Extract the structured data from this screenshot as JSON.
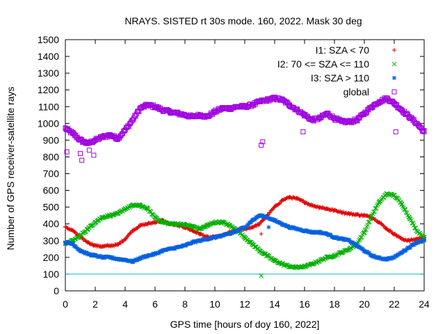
{
  "chart_data": {
    "type": "scatter",
    "title": "NRAYS. SISTED rt 30s mode. 160, 2022. Mask 30 deg",
    "xlabel": "GPS time [hours of doy 160, 2022]",
    "ylabel": "Number of GPS receiver-satellite rays",
    "xlim": [
      0,
      24
    ],
    "ylim": [
      0,
      1500
    ],
    "xticks": [
      0,
      2,
      4,
      6,
      8,
      10,
      12,
      14,
      16,
      18,
      20,
      22,
      24
    ],
    "yticks": [
      0,
      100,
      200,
      300,
      400,
      500,
      600,
      700,
      800,
      900,
      1000,
      1100,
      1200,
      1300,
      1400,
      1500
    ],
    "legend_position": "top-right",
    "reference_line": {
      "y": 100,
      "color": "#00c0c0"
    },
    "series": [
      {
        "name": "I1: SZA < 70",
        "marker": "+",
        "color": "#e00000",
        "x": [
          0,
          0.5,
          1,
          1.5,
          2,
          2.5,
          3,
          3.5,
          4,
          4.5,
          5,
          5.5,
          6,
          6.5,
          7,
          7.5,
          8,
          8.5,
          9,
          9.5,
          10,
          10.5,
          11,
          11.5,
          12,
          12.5,
          13,
          13.5,
          14,
          14.5,
          15,
          15.5,
          16,
          16.5,
          17,
          17.5,
          18,
          18.5,
          19,
          19.5,
          20,
          20.5,
          21,
          21.5,
          22,
          22.5,
          23,
          23.5,
          24
        ],
        "values": [
          380,
          360,
          320,
          290,
          270,
          265,
          270,
          275,
          310,
          360,
          390,
          400,
          410,
          420,
          400,
          390,
          380,
          360,
          340,
          320,
          320,
          330,
          350,
          360,
          370,
          380,
          400,
          450,
          500,
          540,
          560,
          550,
          530,
          510,
          500,
          490,
          480,
          470,
          460,
          455,
          450,
          440,
          410,
          370,
          340,
          310,
          300,
          310,
          320
        ]
      },
      {
        "name": "I2: 70 <= SZA <= 110",
        "marker": "x",
        "color": "#00b000",
        "x": [
          0,
          0.5,
          1,
          1.5,
          2,
          2.5,
          3,
          3.5,
          4,
          4.5,
          5,
          5.5,
          6,
          6.5,
          7,
          7.5,
          8,
          8.5,
          9,
          9.5,
          10,
          10.5,
          11,
          11.5,
          12,
          12.5,
          13,
          13.5,
          14,
          14.5,
          15,
          15.5,
          16,
          16.5,
          17,
          17.5,
          18,
          18.5,
          19,
          19.5,
          20,
          20.5,
          21,
          21.5,
          22,
          22.5,
          23,
          23.5,
          24
        ],
        "values": [
          280,
          300,
          330,
          370,
          410,
          440,
          450,
          460,
          490,
          510,
          510,
          490,
          440,
          410,
          400,
          400,
          395,
          385,
          370,
          390,
          410,
          410,
          390,
          360,
          320,
          280,
          240,
          210,
          180,
          160,
          145,
          140,
          145,
          160,
          180,
          200,
          210,
          230,
          250,
          280,
          350,
          450,
          530,
          580,
          570,
          520,
          440,
          360,
          320
        ]
      },
      {
        "name": "I3: SZA > 110",
        "marker": "*",
        "color": "#0060e0",
        "x": [
          0,
          0.5,
          1,
          1.5,
          2,
          2.5,
          3,
          3.5,
          4,
          4.5,
          5,
          5.5,
          6,
          6.5,
          7,
          7.5,
          8,
          8.5,
          9,
          9.5,
          10,
          10.5,
          11,
          11.5,
          12,
          12.5,
          13,
          13.5,
          14,
          14.5,
          15,
          15.5,
          16,
          16.5,
          17,
          17.5,
          18,
          18.5,
          19,
          19.5,
          20,
          20.5,
          21,
          21.5,
          22,
          22.5,
          23,
          23.5,
          24
        ],
        "values": [
          290,
          280,
          240,
          220,
          210,
          200,
          200,
          190,
          185,
          175,
          195,
          210,
          220,
          240,
          250,
          260,
          270,
          290,
          300,
          310,
          320,
          330,
          340,
          360,
          380,
          420,
          450,
          440,
          420,
          400,
          380,
          370,
          360,
          350,
          350,
          340,
          320,
          310,
          300,
          270,
          240,
          210,
          195,
          190,
          200,
          230,
          260,
          290,
          300
        ]
      },
      {
        "name": "global",
        "marker": "square",
        "color": "#a000e0",
        "x": [
          0,
          0.5,
          1,
          1.5,
          2,
          2.5,
          3,
          3.5,
          4,
          4.5,
          5,
          5.5,
          6,
          6.5,
          7,
          7.5,
          8,
          8.5,
          9,
          9.5,
          10,
          10.5,
          11,
          11.5,
          12,
          12.5,
          13,
          13.5,
          14,
          14.5,
          15,
          15.5,
          16,
          16.5,
          17,
          17.5,
          18,
          18.5,
          19,
          19.5,
          20,
          20.5,
          21,
          21.5,
          22,
          22.5,
          23,
          23.5,
          24
        ],
        "values": [
          970,
          940,
          900,
          880,
          900,
          920,
          930,
          910,
          960,
          1020,
          1090,
          1110,
          1100,
          1080,
          1070,
          1060,
          1050,
          1040,
          1050,
          1040,
          1070,
          1090,
          1090,
          1100,
          1100,
          1110,
          1130,
          1140,
          1150,
          1140,
          1110,
          1080,
          1050,
          1020,
          1030,
          1060,
          1030,
          1010,
          1010,
          1020,
          1060,
          1100,
          1130,
          1150,
          1120,
          1080,
          1040,
          1000,
          950
        ]
      }
    ],
    "outliers": [
      {
        "series": "global",
        "x": 0.1,
        "y": 830
      },
      {
        "series": "global",
        "x": 1.0,
        "y": 820
      },
      {
        "series": "global",
        "x": 1.1,
        "y": 780
      },
      {
        "series": "global",
        "x": 1.6,
        "y": 840
      },
      {
        "series": "global",
        "x": 1.9,
        "y": 810
      },
      {
        "series": "global",
        "x": 13.1,
        "y": 870
      },
      {
        "series": "global",
        "x": 13.2,
        "y": 890
      },
      {
        "series": "global",
        "x": 15.9,
        "y": 950
      },
      {
        "series": "global",
        "x": 22.1,
        "y": 950
      },
      {
        "series": "I1: SZA < 70",
        "x": 13.1,
        "y": 340
      },
      {
        "series": "I2: 70 <= SZA <= 110",
        "x": 13.1,
        "y": 90
      },
      {
        "series": "I3: SZA > 110",
        "x": 13.6,
        "y": 380
      }
    ]
  }
}
